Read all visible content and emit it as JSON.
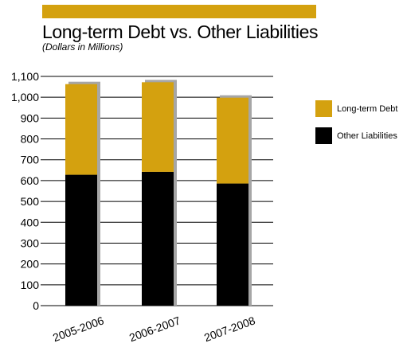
{
  "colors": {
    "debt": "#d4a10f",
    "other": "#000000",
    "shadow": "#a6a6a6",
    "title_bar": "#d4a10f"
  },
  "chart_data": {
    "type": "bar",
    "stacked": true,
    "title": "Long-term Debt vs. Other Liabilities",
    "subtitle": "(Dollars in Millions)",
    "categories": [
      "2005-2006",
      "2006-2007",
      "2007-2008"
    ],
    "series": [
      {
        "name": "Other Liabilities",
        "values": [
          628,
          642,
          586
        ]
      },
      {
        "name": "Long-term Debt",
        "values": [
          435,
          430,
          412
        ]
      }
    ],
    "ylim": [
      0,
      1100
    ],
    "yticks": [
      0,
      100,
      200,
      300,
      400,
      500,
      600,
      700,
      800,
      900,
      1000,
      1100
    ],
    "ytick_labels": [
      "0",
      "100",
      "200",
      "300",
      "400",
      "500",
      "600",
      "700",
      "800",
      "900",
      "1,000",
      "1,100"
    ],
    "grid": true,
    "legend_position": "right"
  },
  "legend": {
    "items": [
      {
        "label": "Long-term Debt",
        "color": "#d4a10f"
      },
      {
        "label": "Other Liabilities",
        "color": "#000000"
      }
    ]
  }
}
